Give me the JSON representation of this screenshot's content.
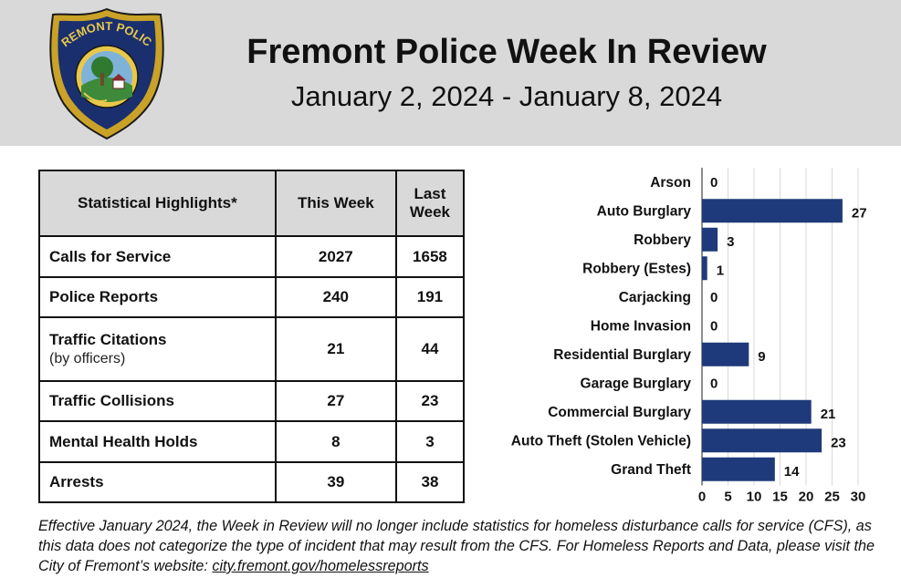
{
  "header": {
    "badge_text": "FREMONT POLICE",
    "title": "Fremont Police Week In Review",
    "date_range": "January 2, 2024 - January 8, 2024"
  },
  "stats_table": {
    "headers": [
      "Statistical Highlights*",
      "This Week",
      "Last Week"
    ],
    "rows": [
      {
        "label": "Calls for Service",
        "sub": "",
        "this_week": "2027",
        "last_week": "1658"
      },
      {
        "label": "Police Reports",
        "sub": "",
        "this_week": "240",
        "last_week": "191"
      },
      {
        "label": "Traffic Citations",
        "sub": "(by officers)",
        "this_week": "21",
        "last_week": "44"
      },
      {
        "label": "Traffic Collisions",
        "sub": "",
        "this_week": "27",
        "last_week": "23"
      },
      {
        "label": "Mental Health Holds",
        "sub": "",
        "this_week": "8",
        "last_week": "3"
      },
      {
        "label": "Arrests",
        "sub": "",
        "this_week": "39",
        "last_week": "38"
      }
    ]
  },
  "chart_data": {
    "type": "bar",
    "orientation": "horizontal",
    "categories": [
      "Arson",
      "Auto Burglary",
      "Robbery",
      "Robbery (Estes)",
      "Carjacking",
      "Home Invasion",
      "Residential Burglary",
      "Garage Burglary",
      "Commercial Burglary",
      "Auto Theft (Stolen Vehicle)",
      "Grand Theft"
    ],
    "values": [
      0,
      27,
      3,
      1,
      0,
      0,
      9,
      0,
      21,
      23,
      14
    ],
    "xlim": [
      0,
      30
    ],
    "xticks": [
      0,
      5,
      10,
      15,
      20,
      25,
      30
    ],
    "grid": true,
    "bar_color": "#1f3a7a"
  },
  "footnote": {
    "text": "Effective January 2024, the Week in Review will no longer include statistics for homeless disturbance calls for service (CFS), as this data does not categorize the type of incident that may result from the CFS. For Homeless Reports and Data, please visit the City of Fremont’s website: ",
    "link_text": "city.fremont.gov/homelessreports"
  }
}
